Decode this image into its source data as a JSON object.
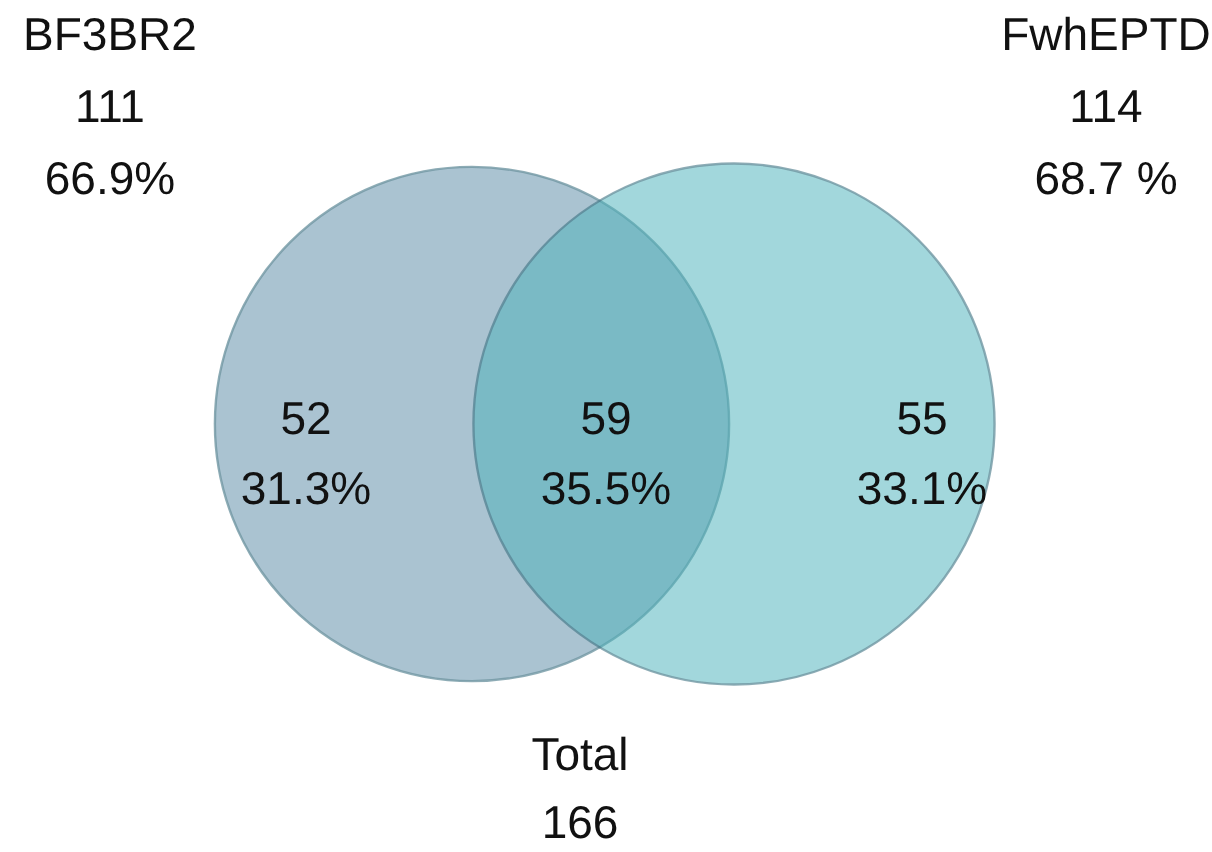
{
  "chart_data": {
    "type": "other",
    "categories": [
      "BF3BR2",
      "FwhEPTD"
    ],
    "values": [
      111,
      114
    ],
    "data_labels": true,
    "colors": [
      "#5d8ca6",
      "#4db3bb"
    ],
    "annotations": [
      "66.9%",
      "68.7 %",
      "52",
      "31.3%",
      "59",
      "35.5%",
      "55",
      "33.1%",
      "Total",
      "166"
    ]
  }
}
